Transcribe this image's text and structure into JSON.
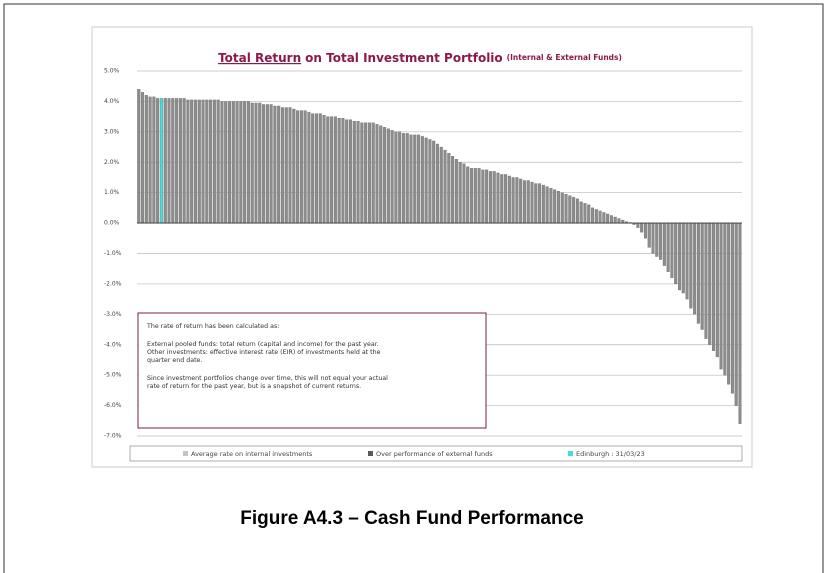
{
  "chart_data": {
    "type": "bar",
    "title": {
      "link": "Total Return",
      "rest": "on Total Investment Portfolio",
      "note": "(Internal & External Funds)"
    },
    "values": [
      4.4,
      4.3,
      4.2,
      4.15,
      4.15,
      4.1,
      4.1,
      4.1,
      4.1,
      4.1,
      4.1,
      4.1,
      4.1,
      4.05,
      4.05,
      4.05,
      4.05,
      4.05,
      4.05,
      4.05,
      4.05,
      4.05,
      4.0,
      4.0,
      4.0,
      4.0,
      4.0,
      4.0,
      4.0,
      4.0,
      3.95,
      3.95,
      3.95,
      3.9,
      3.9,
      3.9,
      3.85,
      3.85,
      3.8,
      3.8,
      3.8,
      3.75,
      3.7,
      3.7,
      3.7,
      3.65,
      3.6,
      3.6,
      3.6,
      3.55,
      3.5,
      3.5,
      3.5,
      3.45,
      3.45,
      3.4,
      3.4,
      3.35,
      3.35,
      3.3,
      3.3,
      3.3,
      3.3,
      3.25,
      3.2,
      3.15,
      3.1,
      3.05,
      3.0,
      3.0,
      2.95,
      2.95,
      2.9,
      2.9,
      2.9,
      2.85,
      2.8,
      2.75,
      2.7,
      2.6,
      2.5,
      2.4,
      2.3,
      2.2,
      2.1,
      2.0,
      1.95,
      1.85,
      1.8,
      1.8,
      1.8,
      1.75,
      1.75,
      1.7,
      1.7,
      1.65,
      1.6,
      1.6,
      1.55,
      1.5,
      1.5,
      1.45,
      1.4,
      1.4,
      1.35,
      1.3,
      1.3,
      1.25,
      1.2,
      1.15,
      1.1,
      1.05,
      1.0,
      0.95,
      0.9,
      0.85,
      0.8,
      0.7,
      0.65,
      0.6,
      0.5,
      0.45,
      0.4,
      0.35,
      0.3,
      0.25,
      0.2,
      0.15,
      0.1,
      0.05,
      0.02,
      -0.05,
      -0.15,
      -0.3,
      -0.5,
      -0.8,
      -1.0,
      -1.1,
      -1.2,
      -1.4,
      -1.6,
      -1.8,
      -2.0,
      -2.2,
      -2.3,
      -2.5,
      -2.8,
      -3.0,
      -3.3,
      -3.5,
      -3.8,
      -4.0,
      -4.2,
      -4.4,
      -4.8,
      -5.0,
      -5.3,
      -5.6,
      -6.0,
      -6.6
    ],
    "color": "#8c8c8c",
    "highlight": {
      "index": 6,
      "legend": 2
    },
    "ylim": [
      -7,
      5
    ],
    "yticks": [
      {
        "value": 5,
        "label": "5.0%"
      },
      {
        "value": 4,
        "label": "4.0%"
      },
      {
        "value": 3,
        "label": "3.0%"
      },
      {
        "value": 2,
        "label": "2.0%"
      },
      {
        "value": 1,
        "label": "1.0%"
      },
      {
        "value": 0,
        "label": "0.0%"
      },
      {
        "value": -1,
        "label": "-1.0%"
      },
      {
        "value": -2,
        "label": "-2.0%"
      },
      {
        "value": -3,
        "label": "-3.0%"
      },
      {
        "value": -4,
        "label": "-4.0%"
      },
      {
        "value": -5,
        "label": "-5.0%"
      },
      {
        "value": -6,
        "label": "-6.0%"
      },
      {
        "value": -7,
        "label": "-7.0%"
      }
    ],
    "grid": true,
    "legend": [
      {
        "name": "Average rate on internal investments",
        "color": "#c4c4c4"
      },
      {
        "name": "Over performance of external funds",
        "color": "#5a5a5a"
      },
      {
        "name": "Edinburgh : 31/03/23",
        "color": "#40e0e0"
      }
    ],
    "note": [
      "The rate of return has been calculated as:",
      "External pooled funds: total return (capital and income) for the past year.",
      "Other investments: effective interest rate (EIR) of investments held at the",
      "quarter end date.",
      "Since investment portfolios change over time, this will not equal your actual",
      "rate of return for the past year, but is a snapshot of current returns."
    ]
  },
  "caption": "Figure A4.3 – Cash Fund Performance"
}
